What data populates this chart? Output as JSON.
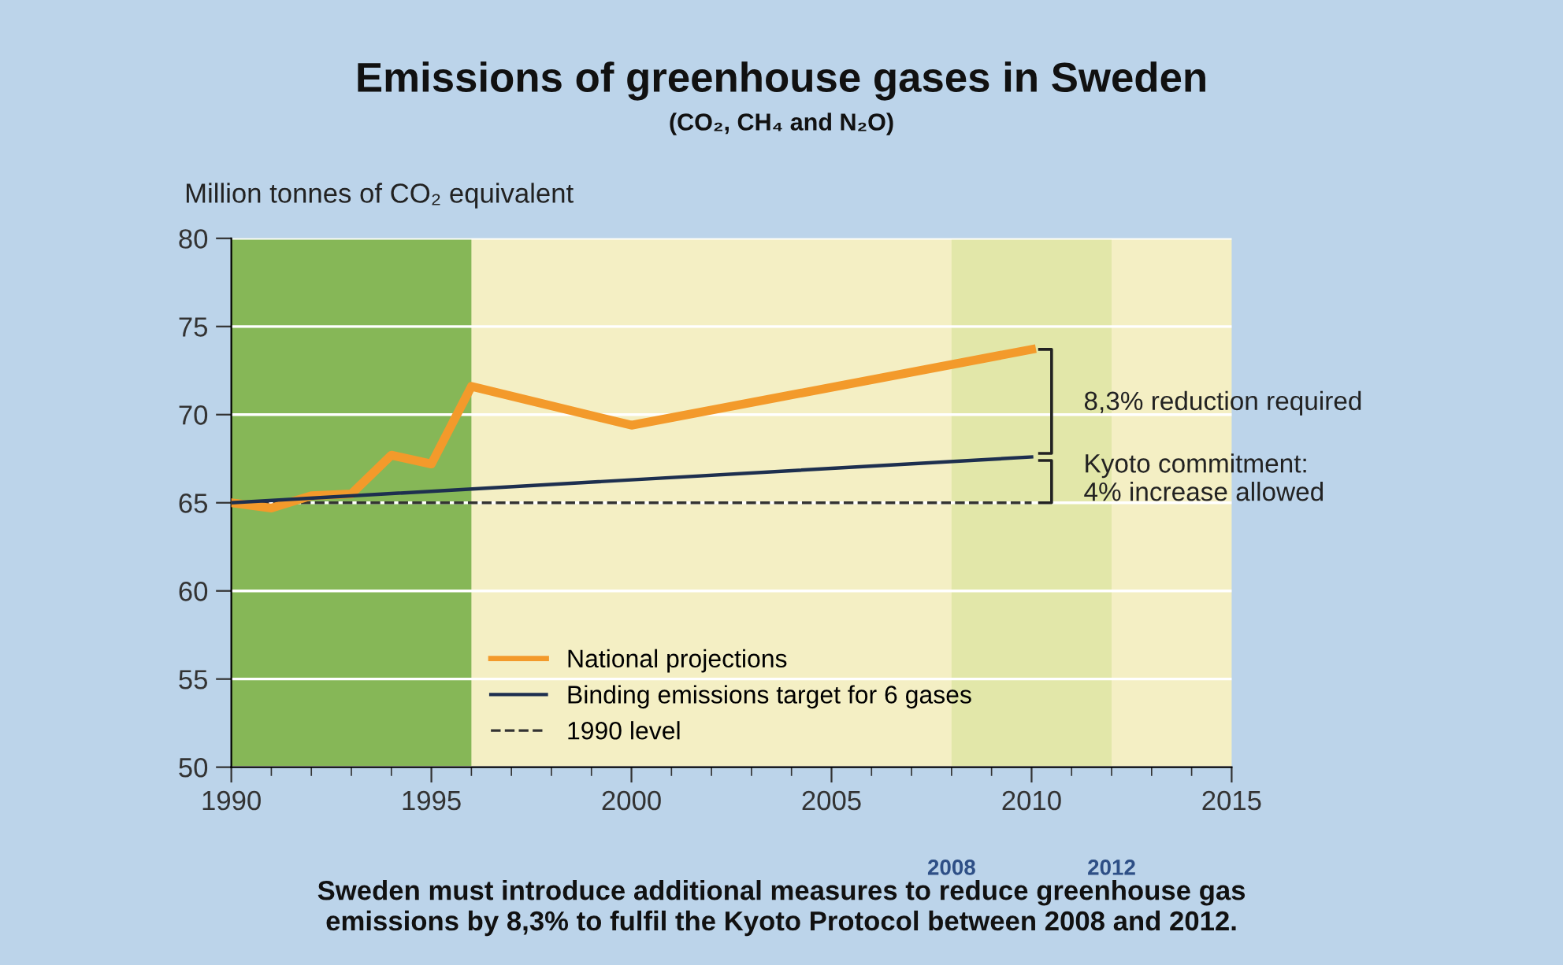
{
  "chart_data": {
    "type": "line",
    "title": "Emissions of greenhouse gases in Sweden",
    "subtitle": "(CO₂, CH₄ and N₂O)",
    "ylabel": "Million tonnes of CO₂ equivalent",
    "series": [
      {
        "name": "National projections",
        "color": "#f39a2b",
        "x": [
          1990,
          1991,
          1992,
          1993,
          1994,
          1995,
          1996,
          2000,
          2010
        ],
        "values": [
          65.0,
          64.7,
          65.4,
          65.5,
          67.7,
          67.2,
          71.6,
          69.4,
          73.7
        ]
      },
      {
        "name": "Binding emissions target for 6 gases",
        "color": "#1d2f4f",
        "x": [
          1990,
          2010
        ],
        "values": [
          65.0,
          67.6
        ]
      }
    ],
    "ref_lines": [
      {
        "axis": "y",
        "value": 65,
        "label": "1990 level",
        "color": "#333333",
        "line_style": "dashed"
      }
    ],
    "bands": [
      {
        "axis": "x",
        "from": 1990,
        "to": 1996,
        "color": "#86b757"
      },
      {
        "axis": "x",
        "from": 2008,
        "to": 2012,
        "color": "#e2e7a9"
      }
    ],
    "annotations": [
      "8,3% reduction required",
      "Kyoto commitment:\n4% increase allowed",
      "2008",
      "2012",
      "Sweden must introduce additional measures to reduce greenhouse gas\nemissions by 8,3% to fulfil the Kyoto Protocol between 2008 and 2012."
    ],
    "xlim": [
      1990,
      2015
    ],
    "xticks": [
      1990,
      1995,
      2000,
      2005,
      2010,
      2015
    ],
    "ylim": [
      50,
      80
    ],
    "yticks": [
      50,
      55,
      60,
      65,
      70,
      75,
      80
    ],
    "grid": "y",
    "legend": "bottom",
    "marker": "none",
    "line_style": "solid"
  }
}
